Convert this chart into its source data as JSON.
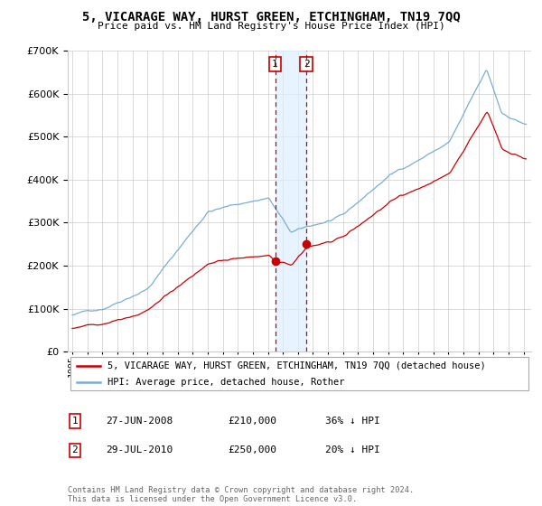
{
  "title": "5, VICARAGE WAY, HURST GREEN, ETCHINGHAM, TN19 7QQ",
  "subtitle": "Price paid vs. HM Land Registry's House Price Index (HPI)",
  "legend_line1": "5, VICARAGE WAY, HURST GREEN, ETCHINGHAM, TN19 7QQ (detached house)",
  "legend_line2": "HPI: Average price, detached house, Rother",
  "annotation1_date": "27-JUN-2008",
  "annotation1_price": "£210,000",
  "annotation1_hpi": "36% ↓ HPI",
  "annotation2_date": "29-JUL-2010",
  "annotation2_price": "£250,000",
  "annotation2_hpi": "20% ↓ HPI",
  "footer": "Contains HM Land Registry data © Crown copyright and database right 2024.\nThis data is licensed under the Open Government Licence v3.0.",
  "red_color": "#cc0000",
  "blue_color": "#7aadd4",
  "shade_color": "#ddeeff",
  "sale1_year": 2008.48,
  "sale1_price": 210000,
  "sale2_year": 2010.56,
  "sale2_price": 250000,
  "ylim_max": 700000,
  "xlim_start": 1994.7,
  "xlim_end": 2025.5
}
